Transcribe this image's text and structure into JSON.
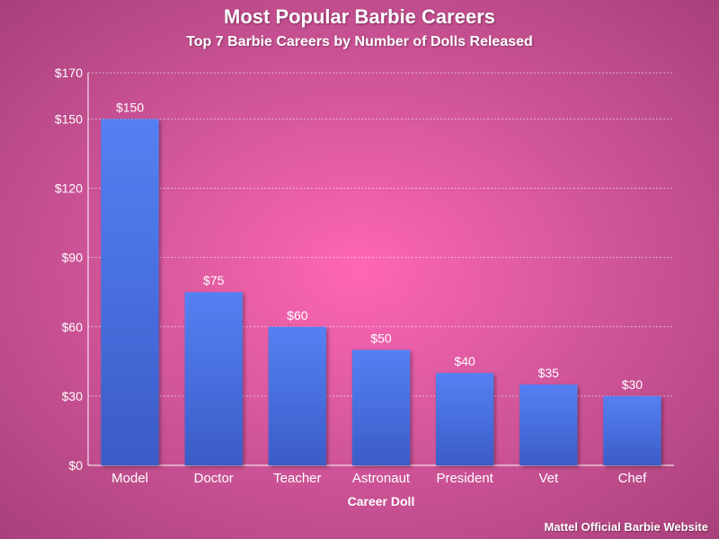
{
  "chart_data": {
    "type": "bar",
    "title": "Most Popular Barbie Careers",
    "subtitle": "Top 7 Barbie Careers by Number of Dolls Released",
    "xlabel": "Career Doll",
    "ylabel": "",
    "categories": [
      "Model",
      "Doctor",
      "Teacher",
      "Astronaut",
      "President",
      "Vet",
      "Chef"
    ],
    "values": [
      150,
      75,
      60,
      50,
      40,
      35,
      30
    ],
    "value_labels": [
      "$150",
      "$75",
      "$60",
      "$50",
      "$40",
      "$35",
      "$30"
    ],
    "ylim": [
      0,
      170
    ],
    "yticks": [
      0,
      30,
      60,
      90,
      120,
      150,
      170
    ],
    "ytick_labels": [
      "$0",
      "$30",
      "$60",
      "$90",
      "$120",
      "$150",
      "$170"
    ],
    "grid": true,
    "bar_color_top": "#5580f2",
    "bar_color_bottom": "#3b5cc8",
    "background_center": "#ff66b3",
    "background_edge": "#a8407a"
  },
  "source": "Mattel Official Barbie Website"
}
